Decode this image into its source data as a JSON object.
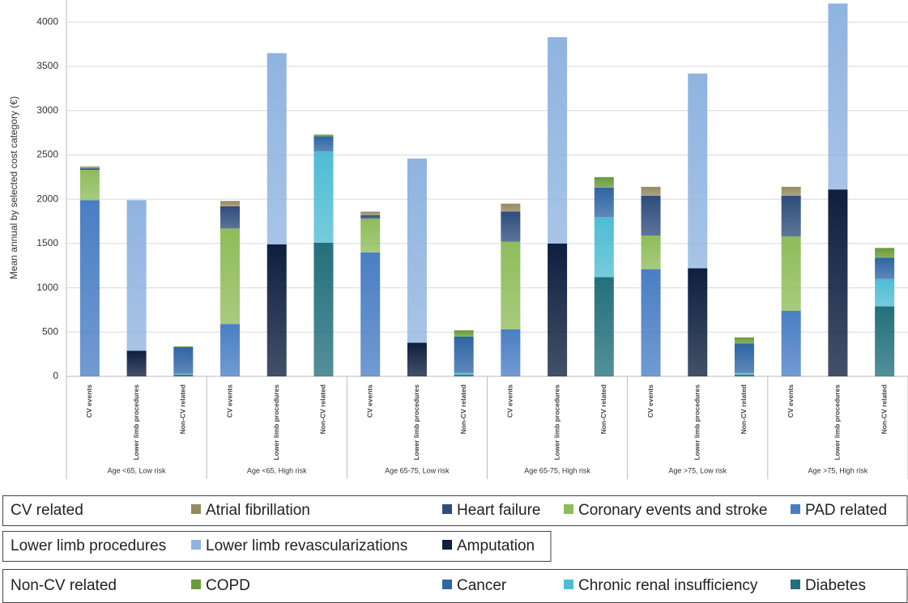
{
  "chart_data": {
    "type": "stacked_bar",
    "y_label": "Mean annual by selected cost category (€)",
    "categories": [
      "CV events",
      "Lower limb procedures",
      "Non-CV related",
      "CV events",
      "Lower limb procedures",
      "Non-CV related",
      "CV events",
      "Lower limb procedures",
      "Non-CV related",
      "CV events",
      "Lower limb procedures",
      "Non-CV related",
      "CV events",
      "Lower limb procedures",
      "Non-CV related",
      "CV events",
      "Lower limb procedures",
      "Non-CV related"
    ],
    "groups": [
      "Age <65, Low risk",
      "Age <65, High risk",
      "Age 65-75, Low risk",
      "Age 65-75, High risk",
      "Age >75, Low risk",
      "Age >75, High risk"
    ],
    "ylim": [
      0,
      4250
    ],
    "yticks": [
      0,
      500,
      1000,
      1500,
      2000,
      2500,
      3000,
      3500,
      4000
    ],
    "grid": true,
    "series_groups": [
      {
        "title": "CV related",
        "series": [
          {
            "name": "Atrial fibrillation",
            "color": "#948a5f",
            "values": [
              20,
              null,
              null,
              60,
              null,
              null,
              40,
              null,
              null,
              90,
              null,
              null,
              100,
              null,
              null,
              100,
              null,
              null
            ]
          },
          {
            "name": "Heart failure",
            "color": "#2e4d7b",
            "values": [
              20,
              null,
              null,
              250,
              null,
              null,
              40,
              null,
              null,
              340,
              null,
              null,
              450,
              null,
              null,
              460,
              null,
              null
            ]
          },
          {
            "name": "Coronary events and stroke",
            "color": "#8fbc5a",
            "values": [
              340,
              null,
              null,
              1080,
              null,
              null,
              380,
              null,
              null,
              990,
              null,
              null,
              380,
              null,
              null,
              840,
              null,
              null
            ]
          },
          {
            "name": "PAD related",
            "color": "#4a7ec4",
            "values": [
              1990,
              null,
              null,
              590,
              null,
              null,
              1400,
              null,
              null,
              530,
              null,
              null,
              1210,
              null,
              null,
              740,
              null,
              null
            ]
          }
        ]
      },
      {
        "title": "Lower limb procedures",
        "series": [
          {
            "name": "Lower limb revascularizations",
            "color": "#8fb3e0",
            "values": [
              null,
              1700,
              null,
              null,
              2160,
              null,
              null,
              2080,
              null,
              null,
              2330,
              null,
              null,
              2200,
              null,
              null,
              2100,
              null
            ]
          },
          {
            "name": "Amputation",
            "color": "#0e1f3f",
            "values": [
              null,
              290,
              null,
              null,
              1490,
              null,
              null,
              380,
              null,
              null,
              1500,
              null,
              null,
              1220,
              null,
              null,
              2110,
              null
            ]
          }
        ]
      },
      {
        "title": "Non-CV related",
        "series": [
          {
            "name": "COPD",
            "color": "#6a9a3a",
            "values": [
              null,
              null,
              10,
              null,
              null,
              20,
              null,
              null,
              70,
              null,
              null,
              120,
              null,
              null,
              70,
              null,
              null,
              110
            ]
          },
          {
            "name": "Cancer",
            "color": "#2f65a5",
            "values": [
              null,
              null,
              300,
              null,
              null,
              170,
              null,
              null,
              410,
              null,
              null,
              330,
              null,
              null,
              330,
              null,
              null,
              240
            ]
          },
          {
            "name": "Chronic renal insufficiency",
            "color": "#4fbcd3",
            "values": [
              null,
              null,
              10,
              null,
              null,
              1030,
              null,
              null,
              20,
              null,
              null,
              680,
              null,
              null,
              20,
              null,
              null,
              310
            ]
          },
          {
            "name": "Diabetes",
            "color": "#23707c",
            "values": [
              null,
              null,
              20,
              null,
              null,
              1510,
              null,
              null,
              20,
              null,
              null,
              1120,
              null,
              null,
              20,
              null,
              null,
              790
            ]
          }
        ]
      }
    ]
  }
}
